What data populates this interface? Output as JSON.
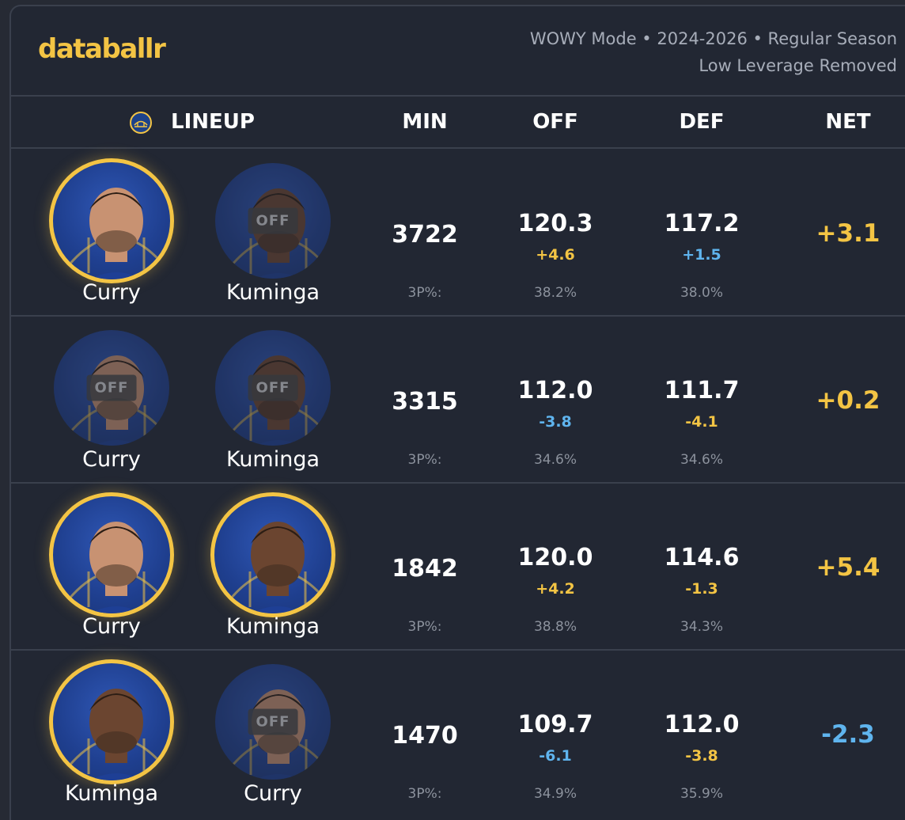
{
  "brand": {
    "logo_text": "databallr"
  },
  "meta": {
    "line1": "WOWY Mode • 2024-2026 • Regular Season",
    "line2": "Low Leverage Removed"
  },
  "header": {
    "lineup": "LINEUP",
    "min": "MIN",
    "off": "OFF",
    "def": "DEF",
    "net": "NET"
  },
  "colors": {
    "accent": "#f3c444",
    "negative": "#5fb4ee",
    "background": "#222733"
  },
  "rows": [
    {
      "players": [
        {
          "name": "Curry",
          "status": "on",
          "off_label": ""
        },
        {
          "name": "Kuminga",
          "status": "off",
          "off_label": "OFF"
        }
      ],
      "min": "3722",
      "off": "120.3",
      "off_delta": "+4.6",
      "off_delta_sign": "pos",
      "def": "117.2",
      "def_delta": "+1.5",
      "def_delta_sign": "neg",
      "net": "+3.1",
      "net_sign": "pos",
      "tp_label": "3P%:",
      "off_3p": "38.2%",
      "def_3p": "38.0%"
    },
    {
      "players": [
        {
          "name": "Curry",
          "status": "off",
          "off_label": "OFF"
        },
        {
          "name": "Kuminga",
          "status": "off",
          "off_label": "OFF"
        }
      ],
      "min": "3315",
      "off": "112.0",
      "off_delta": "-3.8",
      "off_delta_sign": "neg",
      "def": "111.7",
      "def_delta": "-4.1",
      "def_delta_sign": "pos",
      "net": "+0.2",
      "net_sign": "pos",
      "tp_label": "3P%:",
      "off_3p": "34.6%",
      "def_3p": "34.6%"
    },
    {
      "players": [
        {
          "name": "Curry",
          "status": "on",
          "off_label": ""
        },
        {
          "name": "Kuminga",
          "status": "on",
          "off_label": ""
        }
      ],
      "min": "1842",
      "off": "120.0",
      "off_delta": "+4.2",
      "off_delta_sign": "pos",
      "def": "114.6",
      "def_delta": "-1.3",
      "def_delta_sign": "pos",
      "net": "+5.4",
      "net_sign": "pos",
      "tp_label": "3P%:",
      "off_3p": "38.8%",
      "def_3p": "34.3%"
    },
    {
      "players": [
        {
          "name": "Kuminga",
          "status": "on",
          "off_label": ""
        },
        {
          "name": "Curry",
          "status": "off",
          "off_label": "OFF"
        }
      ],
      "min": "1470",
      "off": "109.7",
      "off_delta": "-6.1",
      "off_delta_sign": "neg",
      "def": "112.0",
      "def_delta": "-3.8",
      "def_delta_sign": "pos",
      "net": "-2.3",
      "net_sign": "neg",
      "tp_label": "3P%:",
      "off_3p": "34.9%",
      "def_3p": "35.9%"
    }
  ]
}
